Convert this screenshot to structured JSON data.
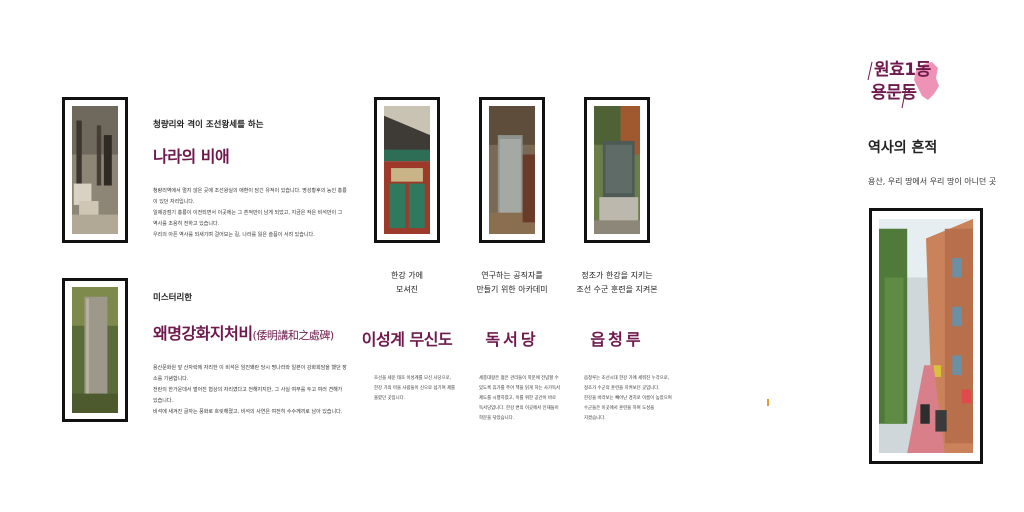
{
  "left": {
    "item1": {
      "subtitle": "청량리와 격이 조선왕세를 하는",
      "title": "나라의 비애",
      "body": [
        "청량리역에서 멀지 않은 곳에 조선왕실의 애환이 담긴 유적이 있습니다. 명성황후의 능인 홍릉이 있던 자리입니다.",
        "일제강점기 홍릉이 이전되면서 이곳에는 그 흔적만이 남게 되었고, 지금은 작은 비석만이 그 역사를 조용히 전하고 있습니다.",
        "우리의 아픈 역사를 되새기며 걸어보는 길, 나라를 잃은 슬픔이 서려 있습니다."
      ]
    },
    "item2": {
      "subtitle": "미스터리한",
      "title": "왜명강화지처비",
      "title_hanja": "(倭明講和之處碑)",
      "body": [
        "용산문화원 앞 산자락에 자리한 이 비석은 임진왜란 당시 명나라와 일본이 강화회담을 했던 장소를 기념합니다.",
        "전란의 한가운데서 벌어진 협상의 자리였다고 전해지지만, 그 사실 여부를 두고 여러 견해가 있습니다.",
        "비석에 새겨진 글자는 풍화로 흐릿해졌고, 비석의 사연은 여전히 수수께끼로 남아 있습니다."
      ]
    }
  },
  "columns": [
    {
      "subtitle": [
        "한강 가에",
        "모셔진"
      ],
      "title": "이성계 무신도",
      "body": [
        "조선을 세운 태조 이성계를 모신 사당으로,",
        "한강 가의 마을 사람들이 신으로 섬기며 제를",
        "올렸던 곳입니다."
      ]
    },
    {
      "subtitle": [
        "연구하는 공직자를",
        "만들기 위한 아카데미"
      ],
      "title": "독서당",
      "body": [
        "세종대왕은 젊은 관리들이 학문에 전념할 수",
        "있도록 휴가를 주어 책을 읽게 하는 사가독서",
        "제도를 시행하였고, 이를 위한 공간이 바로",
        "독서당입니다. 한강 변의 이곳에서 인재들이",
        "학문을 닦았습니다."
      ]
    },
    {
      "subtitle": [
        "정조가 한강을 지키는",
        "조선 수군 훈련을 지켜본"
      ],
      "title": "읍청루",
      "body": [
        "읍청루는 조선시대 한강 가에 세워진 누각으로,",
        "정조가 수군의 훈련을 지켜보던 곳입니다.",
        "한강을 바라보는 빼어난 경치로 이름이 높았으며",
        "수군들은 이곳에서 훈련을 하며 도성을",
        "지켰습니다."
      ]
    }
  ],
  "right": {
    "tag_line1": "원효1동",
    "tag_line2": "용문동",
    "heading": "역사의 흔적",
    "caption": "용산, 우리 땅에서 우리 땅이 아니던 곳"
  }
}
